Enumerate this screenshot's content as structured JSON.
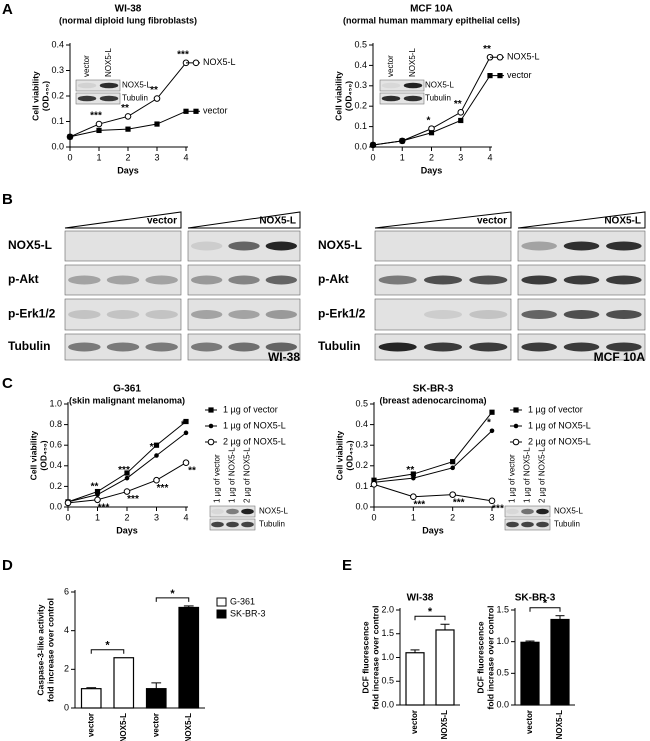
{
  "panel_letters": [
    "A",
    "B",
    "C",
    "D",
    "E"
  ],
  "chart_data": [
    {
      "type": "line",
      "title": "WI-38",
      "subtitle": "(normal diploid lung fibroblasts)",
      "ylabel": [
        "Cell viability",
        "(OD₄₅₀)"
      ],
      "xlabel": "Days",
      "x": [
        0,
        1,
        2,
        3,
        4
      ],
      "xlim": [
        0,
        4
      ],
      "xticks": [
        0,
        1,
        2,
        3,
        4
      ],
      "ylim": [
        0,
        0.4
      ],
      "yticks": [
        {
          "value": 0,
          "label": "0.0"
        },
        0.1,
        0.2,
        0.3,
        0.4
      ],
      "legend": "line-end",
      "series": [
        {
          "name": "NOX5-L",
          "color": "#000000",
          "marker": "open-circle",
          "values": [
            0.04,
            0.09,
            0.12,
            0.19,
            0.33
          ],
          "stars": [
            null,
            "***",
            "**",
            "**",
            "***"
          ]
        },
        {
          "name": "vector",
          "color": "#000000",
          "marker": "square",
          "values": [
            0.04,
            0.065,
            0.07,
            0.09,
            0.14
          ]
        }
      ],
      "inset": {
        "columns": [
          "vector",
          "NOX5-L"
        ],
        "rows": [
          "NOX5-L",
          "Tubulin"
        ]
      }
    },
    {
      "type": "line",
      "title": "MCF 10A",
      "subtitle": "(normal human mammary epithelial cells)",
      "ylabel": [
        "Cell viability",
        "(OD₄₅₀)"
      ],
      "xlabel": "Days",
      "x": [
        0,
        1,
        2,
        3,
        4
      ],
      "xlim": [
        0,
        4
      ],
      "xticks": [
        0,
        1,
        2,
        3,
        4
      ],
      "ylim": [
        0,
        0.5
      ],
      "yticks": [
        {
          "value": 0,
          "label": "0.0"
        },
        0.1,
        0.2,
        0.3,
        0.4,
        0.5
      ],
      "legend": "line-end",
      "series": [
        {
          "name": "NOX5-L",
          "color": "#000000",
          "marker": "open-circle",
          "values": [
            0.01,
            0.03,
            0.09,
            0.17,
            0.44
          ],
          "stars": [
            null,
            null,
            "*",
            "**",
            "**"
          ]
        },
        {
          "name": "vector",
          "color": "#000000",
          "marker": "square",
          "values": [
            0.01,
            0.03,
            0.07,
            0.13,
            0.35
          ]
        }
      ],
      "inset": {
        "columns": [
          "vector",
          "NOX5-L"
        ],
        "rows": [
          "NOX5-L",
          "Tubulin"
        ]
      }
    },
    {
      "type": "line",
      "title": "G-361",
      "subtitle": "(skin malignant melanoma)",
      "ylabel": [
        "Cell viability",
        "(OD₄₅₀)"
      ],
      "xlabel": "Days",
      "x": [
        0,
        1,
        2,
        3,
        4
      ],
      "xlim": [
        0,
        4
      ],
      "xticks": [
        0,
        1,
        2,
        3,
        4
      ],
      "ylim": [
        0,
        1
      ],
      "yticks": [
        {
          "value": 0,
          "label": "0.0"
        },
        0.2,
        0.4,
        0.6,
        0.8,
        {
          "value": 1,
          "label": "1.0"
        }
      ],
      "legend": "right",
      "series": [
        {
          "name": "1 µg of vector",
          "color": "#000000",
          "marker": "square",
          "values": [
            0.05,
            0.15,
            0.33,
            0.6,
            0.83
          ]
        },
        {
          "name": "1 µg of NOX5-L",
          "color": "#000000",
          "marker": "dot",
          "values": [
            0.05,
            0.12,
            0.28,
            0.5,
            0.72
          ],
          "stars": [
            null,
            "**",
            "***",
            "**",
            "*"
          ]
        },
        {
          "name": "2 µg of NOX5-L",
          "color": "#000000",
          "marker": "open-circle",
          "values": [
            0.04,
            0.07,
            0.15,
            0.26,
            0.43
          ],
          "stars": [
            null,
            "***",
            "***",
            "***",
            "**"
          ]
        }
      ],
      "inset": {
        "columns": [
          "1 µg of vector",
          "1 µg of NOX5-L",
          "2 µg of NOX5-L"
        ],
        "rows": [
          "NOX5-L",
          "Tubulin"
        ]
      }
    },
    {
      "type": "line",
      "title": "SK-BR-3",
      "subtitle": "(breast adenocarcinoma)",
      "ylabel": [
        "Cell viability",
        "(OD₄₅₀)"
      ],
      "xlabel": "Days",
      "x": [
        0,
        1,
        2,
        3
      ],
      "xlim": [
        0,
        3
      ],
      "xticks": [
        0,
        1,
        2,
        3
      ],
      "ylim": [
        0,
        0.5
      ],
      "yticks": [
        {
          "value": 0,
          "label": "0.0"
        },
        0.1,
        0.2,
        0.3,
        0.4,
        0.5
      ],
      "legend": "right",
      "series": [
        {
          "name": "1 µg of vector",
          "color": "#000000",
          "marker": "square",
          "values": [
            0.13,
            0.16,
            0.22,
            0.46
          ]
        },
        {
          "name": "1 µg of NOX5-L",
          "color": "#000000",
          "marker": "dot",
          "values": [
            0.12,
            0.14,
            0.19,
            0.37
          ],
          "stars": [
            null,
            "**",
            null,
            "*"
          ]
        },
        {
          "name": "2 µg of NOX5-L",
          "color": "#000000",
          "marker": "open-circle",
          "values": [
            0.11,
            0.05,
            0.06,
            0.03
          ],
          "stars": [
            null,
            "***",
            "***",
            "***"
          ]
        }
      ],
      "inset": {
        "columns": [
          "1 µg of vector",
          "1 µg of NOX5-L",
          "2 µg of NOX5-L"
        ],
        "rows": [
          "NOX5-L",
          "Tubulin"
        ]
      }
    },
    {
      "type": "bar",
      "ylabel": [
        "Caspase-3-like activity",
        "fold increase over control"
      ],
      "categories": [
        "vector",
        "NOX5-L",
        "vector",
        "NOX5-L"
      ],
      "ylim": [
        0,
        6
      ],
      "yticks": [
        0,
        2,
        4,
        6
      ],
      "significance": [
        "*",
        "*"
      ],
      "series": [
        {
          "name": "G-361",
          "color": "#ffffff",
          "values": [
            1.0,
            2.6,
            null,
            null
          ],
          "errors": [
            0.05,
            0,
            null,
            null
          ]
        },
        {
          "name": "SK-BR-3",
          "color": "#000000",
          "values": [
            null,
            null,
            1.0,
            5.2
          ],
          "errors": [
            null,
            null,
            0.3,
            0.08
          ]
        }
      ]
    },
    {
      "type": "bar",
      "title": "WI-38",
      "ylabel": [
        "DCF fluorescence",
        "fold increase over control"
      ],
      "categories": [
        "vector",
        "NOX5-L"
      ],
      "color": "#ffffff",
      "values": [
        1.1,
        1.58
      ],
      "errors": [
        0.06,
        0.12
      ],
      "ylim": [
        0,
        2
      ],
      "yticks": [
        {
          "value": 0,
          "label": "0.0"
        },
        0.5,
        {
          "value": 1,
          "label": "1.0"
        },
        1.5,
        {
          "value": 2,
          "label": "2.0"
        }
      ],
      "significance": [
        "*"
      ]
    },
    {
      "type": "bar",
      "title": "SK-BR-3",
      "ylabel": [
        "DCF fluorescence",
        "fold increase over control"
      ],
      "categories": [
        "vector",
        "NOX5-L"
      ],
      "color": "#000000",
      "values": [
        0.99,
        1.35
      ],
      "errors": [
        0.02,
        0.06
      ],
      "ylim": [
        0,
        1.5
      ],
      "yticks": [
        {
          "value": 0,
          "label": "0.0"
        },
        0.5,
        {
          "value": 1,
          "label": "1.0"
        },
        1.5
      ],
      "significance": [
        "*"
      ]
    }
  ],
  "blots": [
    {
      "groups": [
        "vector",
        "NOX5-L"
      ],
      "rows": [
        "NOX5-L",
        "p-Akt",
        "p-Erk1/2",
        "Tubulin"
      ],
      "cell_line": "WI-38"
    },
    {
      "groups": [
        "vector",
        "NOX5-L"
      ],
      "rows": [
        "NOX5-L",
        "p-Akt",
        "p-Erk1/2",
        "Tubulin"
      ],
      "cell_line": "MCF 10A"
    }
  ]
}
